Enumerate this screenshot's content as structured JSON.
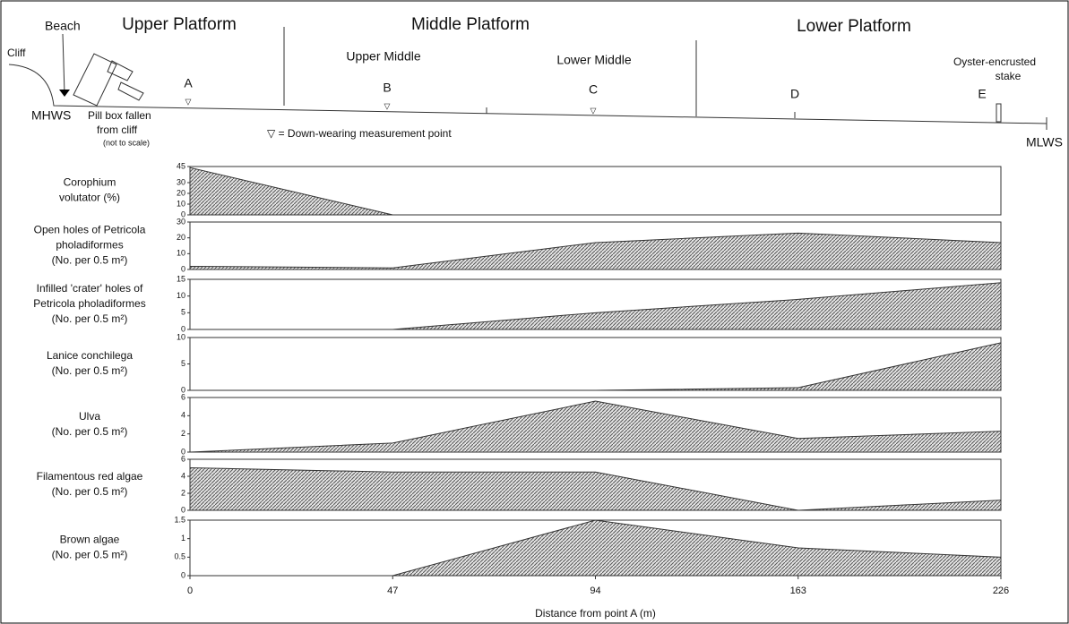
{
  "profile": {
    "cliff": "Cliff",
    "beach": "Beach",
    "upper": "Upper Platform",
    "middle": "Middle Platform",
    "lower": "Lower Platform",
    "upper_middle": "Upper Middle",
    "lower_middle": "Lower Middle",
    "stake": [
      "Oyster-encrusted",
      "stake"
    ],
    "points": [
      "A",
      "B",
      "C",
      "D",
      "E"
    ],
    "mhws": "MHWS",
    "mlws": "MLWS",
    "pillbox": [
      "Pill box fallen",
      "from cliff"
    ],
    "not_to_scale": "(not to scale)",
    "legend": "▽ = Down-wearing measurement point"
  },
  "chart_data": [
    {
      "type": "area",
      "label": [
        "Corophium",
        "volutator (%)"
      ],
      "values": [
        44,
        0,
        0,
        0,
        0
      ],
      "ylim": [
        0,
        45
      ],
      "yticks": [
        0,
        10,
        20,
        30,
        45
      ]
    },
    {
      "type": "area",
      "label": [
        "Open holes of Petricola",
        "pholadiformes",
        "(No.  per 0.5 m²)"
      ],
      "values": [
        2,
        1,
        17,
        23,
        17
      ],
      "ylim": [
        0,
        30
      ],
      "yticks": [
        0,
        10,
        20,
        30
      ]
    },
    {
      "type": "area",
      "label": [
        "Infilled 'crater' holes of",
        "Petricola pholadiformes",
        "(No. per 0.5 m²)"
      ],
      "values": [
        0,
        0,
        5,
        9,
        14
      ],
      "ylim": [
        0,
        15
      ],
      "yticks": [
        0,
        5,
        10,
        15
      ]
    },
    {
      "type": "area",
      "label": [
        "Lanice conchilega",
        "(No. per 0.5 m²)"
      ],
      "values": [
        0,
        0,
        0,
        0.5,
        9
      ],
      "ylim": [
        0,
        10
      ],
      "yticks": [
        0,
        5,
        10
      ]
    },
    {
      "type": "area",
      "label": [
        "Ulva",
        "(No. per 0.5 m²)"
      ],
      "values": [
        0,
        1,
        5.6,
        1.5,
        2.3
      ],
      "ylim": [
        0,
        6
      ],
      "yticks": [
        0,
        2,
        4,
        6
      ]
    },
    {
      "type": "area",
      "label": [
        "Filamentous red algae",
        "(No. per 0.5 m²)"
      ],
      "values": [
        5,
        4.5,
        4.5,
        0,
        1.2
      ],
      "ylim": [
        0,
        6
      ],
      "yticks": [
        0,
        2,
        4,
        6
      ]
    },
    {
      "type": "area",
      "label": [
        "Brown algae",
        "(No. per 0.5 m²)"
      ],
      "values": [
        0,
        0,
        1.5,
        0.75,
        0.5
      ],
      "ylim": [
        0,
        1.5
      ],
      "yticks": [
        0,
        0.5,
        1,
        1.5
      ],
      "categories": [
        "0",
        "47",
        "94",
        "163",
        "226"
      ],
      "xlabel": "Distance from point A (m)"
    }
  ]
}
